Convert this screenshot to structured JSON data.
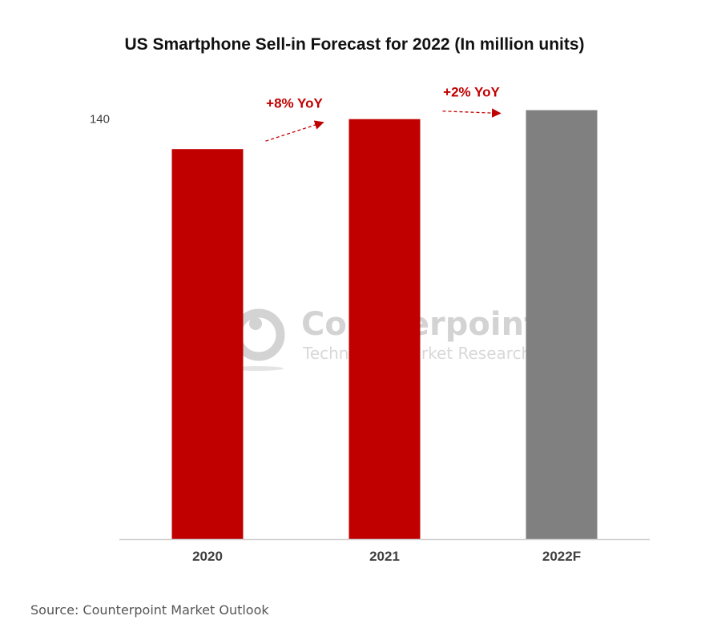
{
  "chart_data": {
    "type": "bar",
    "title": "US Smartphone Sell-in Forecast for 2022 (In million units)",
    "categories": [
      "2020",
      "2021",
      "2022F"
    ],
    "values": [
      130,
      140,
      143
    ],
    "colors": [
      "#c00000",
      "#c00000",
      "#808080"
    ],
    "ylim": [
      0,
      145
    ],
    "yticks": [
      "140"
    ],
    "xlabel": "",
    "ylabel": "",
    "grid": false,
    "annotations": [
      {
        "text": "+8% YoY",
        "from_index": 0,
        "to_index": 1,
        "color": "#c00000"
      },
      {
        "text": "+2% YoY",
        "from_index": 1,
        "to_index": 2,
        "color": "#c00000"
      }
    ]
  },
  "watermark": {
    "brand": "Counterpoint",
    "tagline": "Technology Market Research"
  },
  "footer": {
    "source": "Source: Counterpoint Market Outlook"
  }
}
